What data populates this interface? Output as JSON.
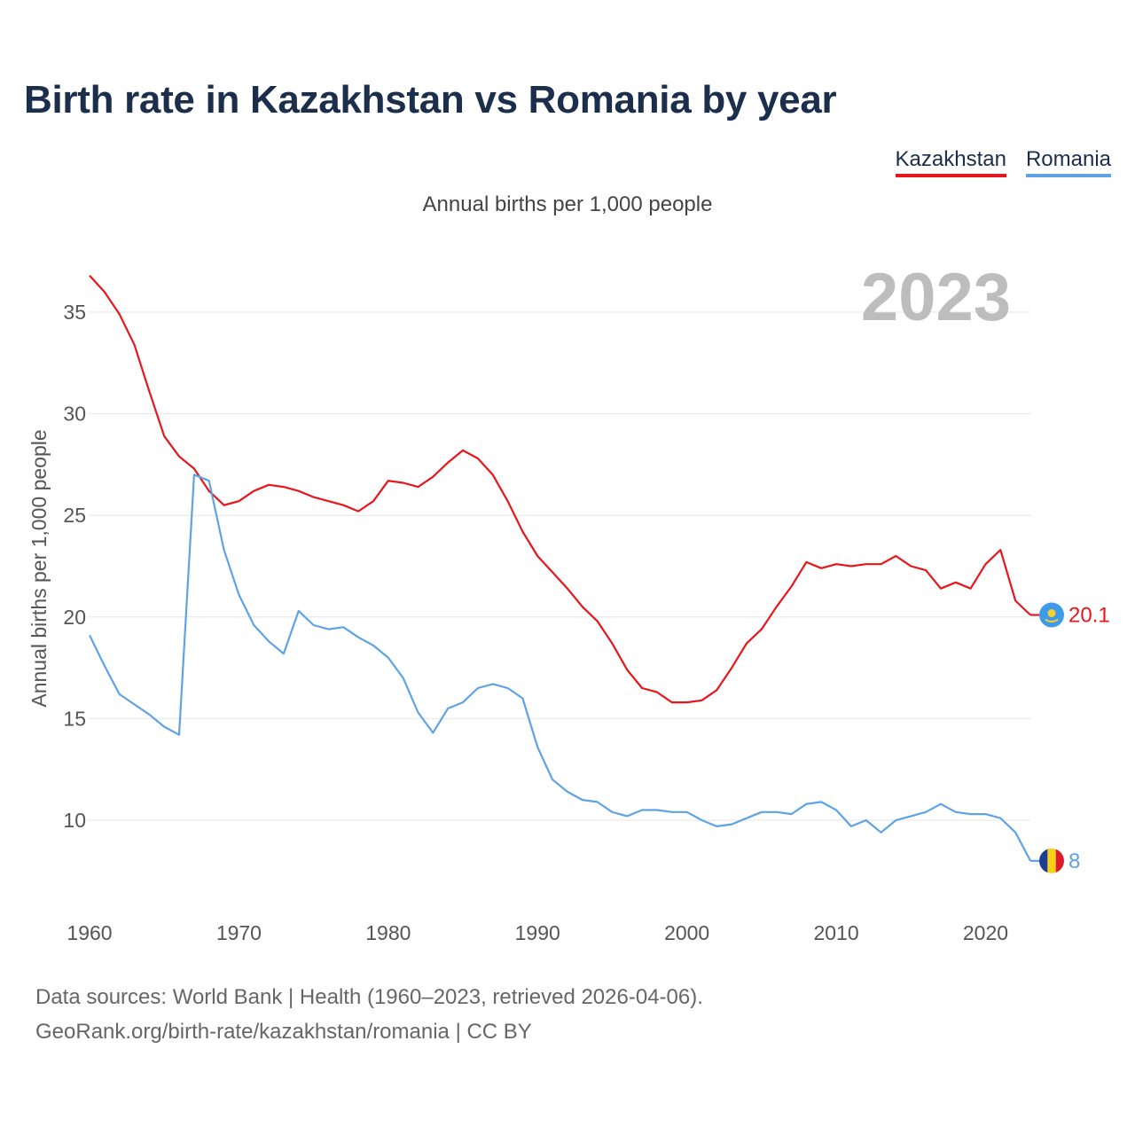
{
  "title": "Birth rate in Kazakhstan vs Romania by year",
  "subtitle": "Annual births per 1,000 people",
  "legend": [
    {
      "label": "Kazakhstan",
      "color": "#e8161b"
    },
    {
      "label": "Romania",
      "color": "#5ea3e6"
    }
  ],
  "footer": {
    "line1": "Data sources: World Bank | Health (1960–2023, retrieved 2026-04-06).",
    "line2": "GeoRank.org/birth-rate/kazakhstan/romania | CC BY"
  },
  "chart_data": {
    "type": "line",
    "title": "Birth rate in Kazakhstan vs Romania by year",
    "ylabel": "Annual births per 1,000 people",
    "xlabel": "",
    "year_label": "2023",
    "xlim": [
      1960,
      2023
    ],
    "ylim": [
      6.5,
      38
    ],
    "x_ticks": [
      1960,
      1970,
      1980,
      1990,
      2000,
      2010,
      2020
    ],
    "y_ticks": [
      10,
      15,
      20,
      25,
      30,
      35
    ],
    "grid": true,
    "x": [
      1960,
      1961,
      1962,
      1963,
      1964,
      1965,
      1966,
      1967,
      1968,
      1969,
      1970,
      1971,
      1972,
      1973,
      1974,
      1975,
      1976,
      1977,
      1978,
      1979,
      1980,
      1981,
      1982,
      1983,
      1984,
      1985,
      1986,
      1987,
      1988,
      1989,
      1990,
      1991,
      1992,
      1993,
      1994,
      1995,
      1996,
      1997,
      1998,
      1999,
      2000,
      2001,
      2002,
      2003,
      2004,
      2005,
      2006,
      2007,
      2008,
      2009,
      2010,
      2011,
      2012,
      2013,
      2014,
      2015,
      2016,
      2017,
      2018,
      2019,
      2020,
      2021,
      2022,
      2023
    ],
    "series": [
      {
        "name": "Kazakhstan",
        "color": "#e8161b",
        "end_label": "20.1",
        "values": [
          36.8,
          36.0,
          34.9,
          33.4,
          31.1,
          28.9,
          27.9,
          27.3,
          26.2,
          25.5,
          25.7,
          26.2,
          26.5,
          26.4,
          26.2,
          25.9,
          25.7,
          25.5,
          25.2,
          25.7,
          26.7,
          26.6,
          26.4,
          26.9,
          27.6,
          28.2,
          27.8,
          27.0,
          25.7,
          24.2,
          23.0,
          22.2,
          21.4,
          20.5,
          19.8,
          18.7,
          17.4,
          16.5,
          16.3,
          15.8,
          15.8,
          15.9,
          16.4,
          17.5,
          18.7,
          19.4,
          20.5,
          21.5,
          22.7,
          22.4,
          22.6,
          22.5,
          22.6,
          22.6,
          23.0,
          22.5,
          22.3,
          21.4,
          21.7,
          21.4,
          22.6,
          23.3,
          20.8,
          20.1
        ]
      },
      {
        "name": "Romania",
        "color": "#5ea3e6",
        "end_label": "8",
        "values": [
          19.1,
          17.6,
          16.2,
          15.7,
          15.2,
          14.6,
          14.2,
          27.0,
          26.7,
          23.3,
          21.1,
          19.6,
          18.8,
          18.2,
          20.3,
          19.6,
          19.4,
          19.5,
          19.0,
          18.6,
          18.0,
          17.0,
          15.3,
          14.3,
          15.5,
          15.8,
          16.5,
          16.7,
          16.5,
          16.0,
          13.6,
          12.0,
          11.4,
          11.0,
          10.9,
          10.4,
          10.2,
          10.5,
          10.5,
          10.4,
          10.4,
          10.0,
          9.7,
          9.8,
          10.1,
          10.4,
          10.4,
          10.3,
          10.8,
          10.9,
          10.5,
          9.7,
          10.0,
          9.4,
          10.0,
          10.2,
          10.4,
          10.8,
          10.4,
          10.3,
          10.3,
          10.1,
          9.4,
          8.0
        ]
      }
    ]
  }
}
